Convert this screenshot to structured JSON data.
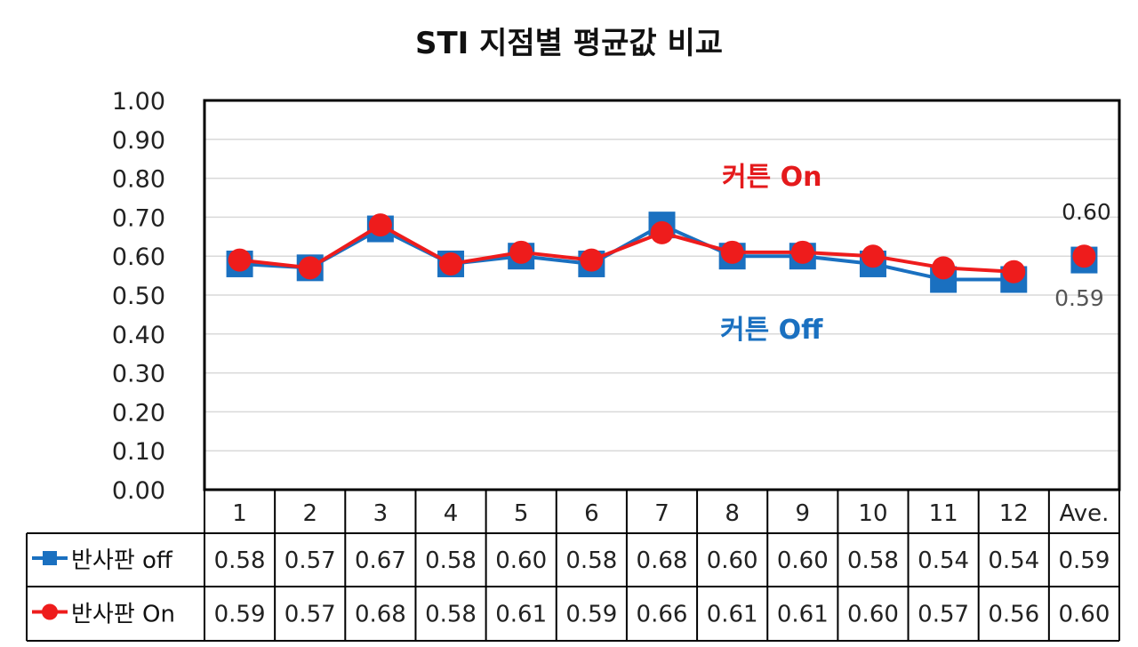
{
  "chart_data": {
    "type": "line",
    "title": "STI  지점별 평균값 비교",
    "categories": [
      "1",
      "2",
      "3",
      "4",
      "5",
      "6",
      "7",
      "8",
      "9",
      "10",
      "11",
      "12",
      "Ave."
    ],
    "ylim": [
      0,
      1.0
    ],
    "yticks": [
      "0.00",
      "0.10",
      "0.20",
      "0.30",
      "0.40",
      "0.50",
      "0.60",
      "0.70",
      "0.80",
      "0.90",
      "1.00"
    ],
    "grid": true,
    "series": [
      {
        "name": "반사판 off",
        "color": "#1a70c0",
        "marker": "square",
        "values": [
          0.58,
          0.57,
          0.67,
          0.58,
          0.6,
          0.58,
          0.68,
          0.6,
          0.6,
          0.58,
          0.54,
          0.54,
          0.59
        ],
        "labels": [
          "0.58",
          "0.57",
          "0.67",
          "0.58",
          "0.60",
          "0.58",
          "0.68",
          "0.60",
          "0.60",
          "0.58",
          "0.54",
          "0.54",
          "0.59"
        ]
      },
      {
        "name": "반사판 On",
        "color": "#ee1c1c",
        "marker": "circle",
        "values": [
          0.59,
          0.57,
          0.68,
          0.58,
          0.61,
          0.59,
          0.66,
          0.61,
          0.61,
          0.6,
          0.57,
          0.56,
          0.6
        ],
        "labels": [
          "0.59",
          "0.57",
          "0.68",
          "0.58",
          "0.61",
          "0.59",
          "0.66",
          "0.61",
          "0.61",
          "0.60",
          "0.57",
          "0.56",
          "0.60"
        ]
      }
    ],
    "annotations": {
      "curtain_on": "커튼 On",
      "curtain_off": "커튼 Off",
      "ave_on": "0.60",
      "ave_off": "0.59"
    }
  }
}
